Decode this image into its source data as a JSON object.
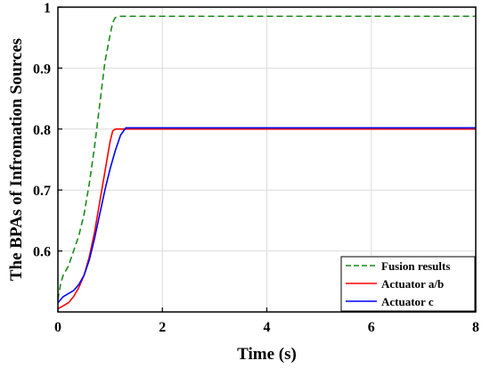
{
  "chart_data": {
    "type": "line",
    "title": "",
    "xlabel": "Time (s)",
    "ylabel": "The BPAs of Infromation Sources",
    "xlim": [
      0,
      8
    ],
    "ylim": [
      0.5,
      1.0
    ],
    "xticks": [
      0,
      2,
      4,
      6,
      8
    ],
    "yticks": [
      0.6,
      0.7,
      0.8,
      0.9,
      1.0
    ],
    "xtick_labels": [
      "0",
      "2",
      "4",
      "6",
      "8"
    ],
    "ytick_labels": [
      "0.6",
      "0.7",
      "0.8",
      "0.9",
      "1"
    ],
    "grid": true,
    "legend_position": "bottom-right",
    "series": [
      {
        "name": "Fusion results",
        "color": "#1a8a1a",
        "style": "dashed",
        "x": [
          0,
          0.05,
          0.1,
          0.2,
          0.3,
          0.4,
          0.5,
          0.6,
          0.7,
          0.8,
          0.9,
          1.0,
          1.05,
          1.1,
          1.2,
          8.0
        ],
        "y": [
          0.52,
          0.545,
          0.56,
          0.575,
          0.6,
          0.625,
          0.66,
          0.71,
          0.77,
          0.84,
          0.91,
          0.955,
          0.975,
          0.983,
          0.985,
          0.985
        ]
      },
      {
        "name": "Actuator a/b",
        "color": "#ff0000",
        "style": "solid",
        "x": [
          0,
          0.1,
          0.2,
          0.3,
          0.4,
          0.5,
          0.6,
          0.7,
          0.8,
          0.9,
          1.0,
          1.05,
          1.1,
          8.0
        ],
        "y": [
          0.505,
          0.51,
          0.515,
          0.525,
          0.54,
          0.56,
          0.59,
          0.63,
          0.68,
          0.73,
          0.78,
          0.797,
          0.8,
          0.8
        ]
      },
      {
        "name": "Actuator c",
        "color": "#0000ff",
        "style": "solid",
        "x": [
          0,
          0.1,
          0.2,
          0.3,
          0.4,
          0.5,
          0.6,
          0.7,
          0.8,
          0.9,
          1.0,
          1.1,
          1.2,
          1.3,
          8.0
        ],
        "y": [
          0.515,
          0.525,
          0.53,
          0.535,
          0.545,
          0.56,
          0.585,
          0.62,
          0.66,
          0.7,
          0.735,
          0.765,
          0.79,
          0.802,
          0.802
        ]
      }
    ]
  }
}
